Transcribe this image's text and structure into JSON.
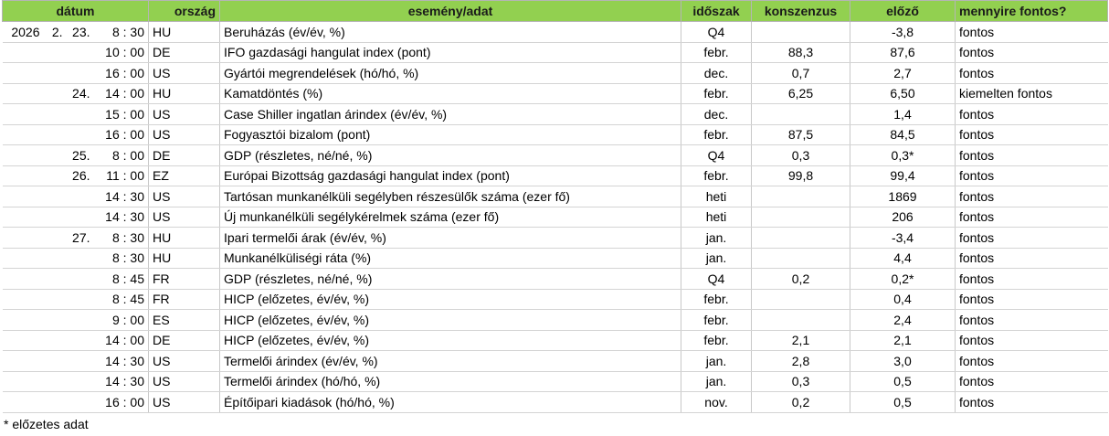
{
  "header": {
    "date": "dátum",
    "country": "ország",
    "event": "esemény/adat",
    "period": "időszak",
    "consensus": "konszenzus",
    "previous": "előző",
    "importance": "mennyire fontos?"
  },
  "rows": [
    {
      "year": "2026",
      "month": "2.",
      "day": "23.",
      "time": "8 : 30",
      "country": "HU",
      "event": "Beruházás (év/év, %)",
      "period": "Q4",
      "previous": "-3,8",
      "importance": "fontos"
    },
    {
      "time": "10 : 00",
      "country": "DE",
      "event": "IFO gazdasági hangulat index (pont)",
      "period": "febr.",
      "consensus": "88,3",
      "previous": "87,6",
      "importance": "fontos"
    },
    {
      "time": "16 : 00",
      "country": "US",
      "event": "Gyártói megrendelések (hó/hó, %)",
      "period": "dec.",
      "consensus": "0,7",
      "previous": "2,7",
      "importance": "fontos"
    },
    {
      "day": "24.",
      "time": "14 : 00",
      "country": "HU",
      "event": "Kamatdöntés (%)",
      "period": "febr.",
      "consensus": "6,25",
      "previous": "6,50",
      "importance": "kiemelten fontos"
    },
    {
      "time": "15 : 00",
      "country": "US",
      "event": "Case Shiller ingatlan árindex (év/év, %)",
      "period": "dec.",
      "previous": "1,4",
      "importance": "fontos"
    },
    {
      "time": "16 : 00",
      "country": "US",
      "event": "Fogyasztói bizalom (pont)",
      "period": "febr.",
      "consensus": "87,5",
      "previous": "84,5",
      "importance": "fontos"
    },
    {
      "day": "25.",
      "time": "8 : 00",
      "country": "DE",
      "event": "GDP (részletes, né/né, %)",
      "period": "Q4",
      "consensus": "0,3",
      "previous": "0,3*",
      "importance": "fontos"
    },
    {
      "day": "26.",
      "time": "11 : 00",
      "country": "EZ",
      "event": "Európai Bizottság gazdasági hangulat index (pont)",
      "period": "febr.",
      "consensus": "99,8",
      "previous": "99,4",
      "importance": "fontos"
    },
    {
      "time": "14 : 30",
      "country": "US",
      "event": "Tartósan munkanélküli segélyben részesülők száma (ezer fő)",
      "period": "heti",
      "previous": "1869",
      "importance": "fontos"
    },
    {
      "time": "14 : 30",
      "country": "US",
      "event": "Új munkanélküli segélykérelmek száma (ezer fő)",
      "period": "heti",
      "previous": "206",
      "importance": "fontos"
    },
    {
      "day": "27.",
      "time": "8 : 30",
      "country": "HU",
      "event": "Ipari termelői árak (év/év, %)",
      "period": "jan.",
      "previous": "-3,4",
      "importance": "fontos"
    },
    {
      "time": "8 : 30",
      "country": "HU",
      "event": "Munkanélküliségi ráta (%)",
      "period": "jan.",
      "previous": "4,4",
      "importance": "fontos"
    },
    {
      "time": "8 : 45",
      "country": "FR",
      "event": "GDP (részletes, né/né, %)",
      "period": "Q4",
      "consensus": "0,2",
      "previous": "0,2*",
      "importance": "fontos"
    },
    {
      "time": "8 : 45",
      "country": "FR",
      "event": "HICP (előzetes, év/év, %)",
      "period": "febr.",
      "previous": "0,4",
      "importance": "fontos"
    },
    {
      "time": "9 : 00",
      "country": "ES",
      "event": "HICP (előzetes, év/év, %)",
      "period": "febr.",
      "previous": "2,4",
      "importance": "fontos"
    },
    {
      "time": "14 : 00",
      "country": "DE",
      "event": "HICP (előzetes, év/év, %)",
      "period": "febr.",
      "consensus": "2,1",
      "previous": "2,1",
      "importance": "fontos"
    },
    {
      "time": "14 : 30",
      "country": "US",
      "event": "Termelői árindex (év/év, %)",
      "period": "jan.",
      "consensus": "2,8",
      "previous": "3,0",
      "importance": "fontos"
    },
    {
      "time": "14 : 30",
      "country": "US",
      "event": "Termelői árindex (hó/hó, %)",
      "period": "jan.",
      "consensus": "0,3",
      "previous": "0,5",
      "importance": "fontos"
    },
    {
      "time": "16 : 00",
      "country": "US",
      "event": "Építőipari kiadások (hó/hó, %)",
      "period": "nov.",
      "consensus": "0,2",
      "previous": "0,5",
      "importance": "fontos"
    }
  ],
  "footnote": "* előzetes adat"
}
